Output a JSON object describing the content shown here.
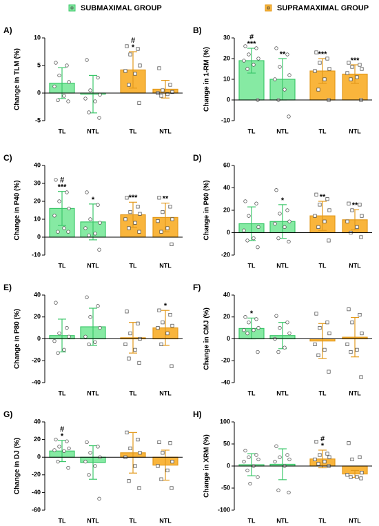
{
  "groups": [
    {
      "name": "SUBMAXIMAL GROUP",
      "color": "#86eaa3",
      "edge": "#3cc76a"
    },
    {
      "name": "SUPRAMAXIMAL GROUP",
      "color": "#f9b53c",
      "edge": "#e39a1c"
    }
  ],
  "chart_data": [
    {
      "type": "bar",
      "panel": "A)",
      "ylabel": "Change in TLM (%)",
      "categories": [
        "TL",
        "NTL"
      ],
      "ylim": [
        -5,
        10
      ],
      "yticks": [
        -5,
        0,
        5,
        10
      ],
      "series": [
        {
          "values": [
            1.8,
            -0.2
          ],
          "errors": [
            2.8,
            3.4
          ],
          "significance": [
            [],
            []
          ],
          "points": [
            [
              5.5,
              5,
              3.2,
              2,
              1.2,
              -0.5,
              -1.3,
              -1.5
            ],
            [
              6,
              2.8,
              0.5,
              -0.3,
              -1,
              -1.5,
              -3.5,
              -4.5
            ]
          ]
        },
        {
          "values": [
            4.2,
            0.7
          ],
          "errors": [
            3.3,
            1.6
          ],
          "significance": [
            [
              "#",
              "*"
            ],
            []
          ],
          "points": [
            [
              8.5,
              8,
              7,
              5,
              4,
              3.5,
              1.5,
              -1.8
            ],
            [
              4.5,
              1.5,
              0.5,
              0.2,
              0,
              -0.2,
              -0.5
            ]
          ]
        }
      ]
    },
    {
      "type": "bar",
      "panel": "B)",
      "ylabel": "Change in 1-RM (%)",
      "categories": [
        "TL",
        "NTL"
      ],
      "ylim": [
        -10,
        30
      ],
      "yticks": [
        -10,
        0,
        10,
        20,
        30
      ],
      "series": [
        {
          "values": [
            19,
            10
          ],
          "errors": [
            6,
            10
          ],
          "significance": [
            [
              "#",
              "***"
            ],
            [
              "**"
            ]
          ],
          "points": [
            [
              26,
              25,
              22,
              20,
              19,
              17,
              15,
              0
            ],
            [
              25,
              22,
              16,
              12,
              10,
              5,
              0,
              -8
            ]
          ]
        },
        {
          "values": [
            14,
            12.5
          ],
          "errors": [
            6,
            4.5
          ],
          "significance": [
            [
              "***"
            ],
            [
              "***"
            ]
          ],
          "points": [
            [
              23,
              20,
              18,
              15,
              14,
              10,
              5,
              0
            ],
            [
              18,
              17,
              16,
              15,
              13,
              11,
              10,
              0
            ]
          ]
        }
      ]
    },
    {
      "type": "bar",
      "panel": "C)",
      "ylabel": "Change in P40 (%)",
      "categories": [
        "TL",
        "NTL"
      ],
      "ylim": [
        -10,
        40
      ],
      "yticks": [
        -10,
        0,
        10,
        20,
        30,
        40
      ],
      "series": [
        {
          "values": [
            16,
            8.5
          ],
          "errors": [
            9.5,
            10
          ],
          "significance": [
            [
              "#",
              "***"
            ],
            [
              "*"
            ]
          ],
          "points": [
            [
              32,
              25,
              20,
              16,
              12,
              5,
              3,
              3
            ],
            [
              25,
              18,
              10,
              8,
              5,
              2,
              1,
              -7
            ]
          ]
        },
        {
          "values": [
            12.5,
            11
          ],
          "errors": [
            7,
            8
          ],
          "significance": [
            [
              "***"
            ],
            [
              "**"
            ]
          ],
          "points": [
            [
              22,
              17,
              14,
              13,
              10,
              8,
              5,
              3
            ],
            [
              22,
              17,
              14,
              10,
              9,
              5,
              3,
              -4
            ]
          ]
        }
      ]
    },
    {
      "type": "bar",
      "panel": "D)",
      "ylabel": "Change in P60 (%)",
      "categories": [
        "TL",
        "NTL"
      ],
      "ylim": [
        -20,
        60
      ],
      "yticks": [
        -20,
        0,
        20,
        40,
        60
      ],
      "series": [
        {
          "values": [
            8,
            10
          ],
          "errors": [
            15,
            15
          ],
          "significance": [
            [],
            [
              "*"
            ]
          ],
          "points": [
            [
              28,
              26,
              15,
              5,
              2,
              -5,
              -7,
              -13
            ],
            [
              38,
              20,
              17,
              10,
              8,
              5,
              -5,
              -8
            ]
          ]
        },
        {
          "values": [
            15,
            11.5
          ],
          "errors": [
            13,
            9
          ],
          "significance": [
            [
              "**"
            ],
            [
              "**"
            ]
          ],
          "points": [
            [
              34,
              30,
              25,
              20,
              15,
              10,
              5,
              -7
            ],
            [
              26,
              25,
              20,
              15,
              10,
              5,
              0,
              -4
            ]
          ]
        }
      ]
    },
    {
      "type": "bar",
      "panel": "E)",
      "ylabel": "Change in P80 (%)",
      "categories": [
        "TL",
        "NTL"
      ],
      "ylim": [
        -40,
        40
      ],
      "yticks": [
        -40,
        -20,
        0,
        20,
        40
      ],
      "series": [
        {
          "values": [
            3,
            11
          ],
          "errors": [
            15,
            17
          ],
          "significance": [
            [],
            []
          ],
          "points": [
            [
              33,
              10,
              5,
              2,
              -2,
              -10,
              -13
            ],
            [
              38,
              30,
              20,
              10,
              2,
              -3,
              -5
            ]
          ]
        },
        {
          "values": [
            1,
            10
          ],
          "errors": [
            14,
            16
          ],
          "significance": [
            [],
            [
              "*"
            ]
          ],
          "points": [
            [
              25,
              14,
              5,
              0,
              -5,
              -10,
              -18,
              -22
            ],
            [
              26,
              22,
              15,
              12,
              10,
              5,
              -5,
              -25
            ]
          ]
        }
      ]
    },
    {
      "type": "bar",
      "panel": "F)",
      "ylabel": "Change in CMJ (%)",
      "categories": [
        "TL",
        "NTL"
      ],
      "ylim": [
        -40,
        40
      ],
      "yticks": [
        -40,
        -20,
        0,
        20,
        40
      ],
      "series": [
        {
          "values": [
            9.5,
            3
          ],
          "errors": [
            9.5,
            12
          ],
          "significance": [
            [
              "*"
            ],
            []
          ],
          "points": [
            [
              20,
              18,
              15,
              10,
              8,
              8,
              5,
              -12
            ],
            [
              21,
              15,
              10,
              5,
              0,
              -8,
              -12
            ]
          ]
        },
        {
          "values": [
            -2,
            1.5
          ],
          "errors": [
            16,
            18
          ],
          "significance": [
            [],
            []
          ],
          "points": [
            [
              23,
              15,
              10,
              5,
              -5,
              -10,
              -15,
              -30
            ],
            [
              27,
              22,
              15,
              5,
              -5,
              -10,
              -12,
              -35
            ]
          ]
        }
      ]
    },
    {
      "type": "bar",
      "panel": "G)",
      "ylabel": "Change in DJ (%)",
      "categories": [
        "TL",
        "NTL"
      ],
      "ylim": [
        -60,
        40
      ],
      "yticks": [
        -60,
        -40,
        -20,
        0,
        20,
        40
      ],
      "series": [
        {
          "values": [
            7,
            -6
          ],
          "errors": [
            12,
            19
          ],
          "significance": [
            [
              "#",
              "*"
            ],
            []
          ],
          "points": [
            [
              20,
              18,
              12,
              10,
              8,
              7,
              -5,
              -12
            ],
            [
              17,
              12,
              5,
              0,
              -5,
              -10,
              -20,
              -47
            ]
          ]
        },
        {
          "values": [
            5,
            -9
          ],
          "errors": [
            23,
            17
          ],
          "significance": [
            [],
            []
          ],
          "points": [
            [
              28,
              20,
              10,
              5,
              0,
              -10,
              -27,
              -35
            ],
            [
              17,
              16,
              5,
              -5,
              -10,
              -15,
              -25,
              -35
            ]
          ]
        }
      ]
    },
    {
      "type": "bar",
      "panel": "H)",
      "ylabel": "Change in XRM (%)",
      "categories": [
        "TL",
        "NTL"
      ],
      "ylim": [
        -100,
        100
      ],
      "yticks": [
        -100,
        -50,
        0,
        50,
        100
      ],
      "series": [
        {
          "values": [
            3,
            4
          ],
          "errors": [
            25,
            35
          ],
          "significance": [
            [],
            []
          ],
          "points": [
            [
              35,
              25,
              20,
              15,
              10,
              0,
              -10,
              -25,
              -40
            ],
            [
              45,
              25,
              20,
              15,
              10,
              0,
              -55,
              -60
            ]
          ]
        },
        {
          "values": [
            16,
            -18
          ],
          "errors": [
            20,
            8
          ],
          "significance": [
            [
              "#",
              "*"
            ],
            []
          ],
          "points": [
            [
              55,
              28,
              25,
              20,
              15,
              10,
              5,
              0
            ],
            [
              52,
              20,
              15,
              -15,
              -20,
              -25,
              -25,
              -28
            ]
          ]
        }
      ]
    }
  ]
}
